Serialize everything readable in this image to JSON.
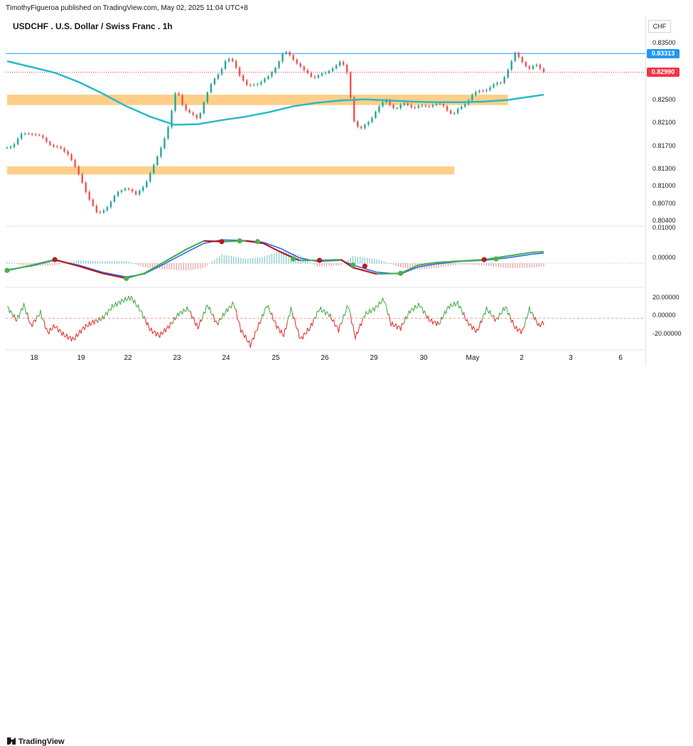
{
  "header": {
    "publisher_line": "TimothyFigueroa published on TradingView.com, May 02, 2025 11:04 UTC+8",
    "symbol_title": "USDCHF . U.S. Dollar / Swiss Franc . 1h"
  },
  "footer": {
    "logo_text": "TradingView"
  },
  "colors": {
    "up": "#26a69a",
    "down": "#ef5350",
    "ma": "#26bbc8",
    "zone": "#ffc774",
    "price_line": "#f23645",
    "high_line": "#2196f3",
    "macd_fast": "#2962ff",
    "macd_green": "#4caf50",
    "macd_red": "#b71c1c",
    "osc_up": "#4caf50",
    "osc_down": "#e53935"
  },
  "chart_data": [
    {
      "type": "candlestick",
      "title": "USDCHF . U.S. Dollar / Swiss Franc . 1h",
      "currency_label": "CHF",
      "y_ticks": [
        "0.83500",
        "0.82500",
        "0.82100",
        "0.81700",
        "0.81300",
        "0.81000",
        "0.80700",
        "0.80400"
      ],
      "x_ticks": [
        "18",
        "19",
        "22",
        "23",
        "24",
        "25",
        "26",
        "29",
        "30",
        "May",
        "2",
        "3",
        "6"
      ],
      "current_price": "0.82990",
      "high_price": "0.83313",
      "close_path": [
        [
          0,
          0.8168
        ],
        [
          6,
          0.8176
        ],
        [
          12,
          0.819
        ],
        [
          20,
          0.8195
        ],
        [
          30,
          0.8184
        ],
        [
          40,
          0.817
        ],
        [
          52,
          0.8158
        ],
        [
          60,
          0.812
        ],
        [
          68,
          0.8085
        ],
        [
          76,
          0.805
        ],
        [
          84,
          0.8068
        ],
        [
          92,
          0.8088
        ],
        [
          100,
          0.8102
        ],
        [
          108,
          0.8085
        ],
        [
          116,
          0.8108
        ],
        [
          124,
          0.814
        ],
        [
          130,
          0.8175
        ],
        [
          136,
          0.821
        ],
        [
          142,
          0.827
        ],
        [
          148,
          0.824
        ],
        [
          154,
          0.8225
        ],
        [
          160,
          0.8218
        ],
        [
          166,
          0.8255
        ],
        [
          172,
          0.828
        ],
        [
          178,
          0.83
        ],
        [
          184,
          0.8322
        ],
        [
          190,
          0.8315
        ],
        [
          196,
          0.8292
        ],
        [
          202,
          0.8272
        ],
        [
          208,
          0.8278
        ],
        [
          214,
          0.8285
        ],
        [
          220,
          0.829
        ],
        [
          226,
          0.8312
        ],
        [
          232,
          0.8335
        ],
        [
          238,
          0.8325
        ],
        [
          244,
          0.8315
        ],
        [
          250,
          0.8298
        ],
        [
          256,
          0.829
        ],
        [
          262,
          0.8296
        ],
        [
          268,
          0.8295
        ],
        [
          274,
          0.831
        ],
        [
          280,
          0.8318
        ],
        [
          286,
          0.8292
        ],
        [
          290,
          0.822
        ],
        [
          296,
          0.8198
        ],
        [
          302,
          0.821
        ],
        [
          310,
          0.8235
        ],
        [
          318,
          0.825
        ],
        [
          326,
          0.8235
        ],
        [
          334,
          0.8245
        ],
        [
          342,
          0.8238
        ],
        [
          350,
          0.824
        ],
        [
          358,
          0.8244
        ],
        [
          366,
          0.824
        ],
        [
          374,
          0.8226
        ],
        [
          382,
          0.824
        ],
        [
          390,
          0.826
        ],
        [
          398,
          0.8266
        ],
        [
          406,
          0.8275
        ],
        [
          414,
          0.828
        ],
        [
          420,
          0.8305
        ],
        [
          426,
          0.833
        ],
        [
          432,
          0.8318
        ],
        [
          438,
          0.8305
        ],
        [
          444,
          0.831
        ],
        [
          450,
          0.8302
        ]
      ],
      "moving_average": [
        [
          0,
          0.8318
        ],
        [
          20,
          0.8308
        ],
        [
          40,
          0.8298
        ],
        [
          60,
          0.8282
        ],
        [
          80,
          0.8262
        ],
        [
          100,
          0.824
        ],
        [
          120,
          0.8222
        ],
        [
          140,
          0.8208
        ],
        [
          160,
          0.8209
        ],
        [
          180,
          0.8216
        ],
        [
          200,
          0.8222
        ],
        [
          220,
          0.823
        ],
        [
          240,
          0.824
        ],
        [
          260,
          0.8246
        ],
        [
          280,
          0.825
        ],
        [
          300,
          0.8252
        ],
        [
          320,
          0.825
        ],
        [
          340,
          0.8248
        ],
        [
          360,
          0.8247
        ],
        [
          380,
          0.8247
        ],
        [
          400,
          0.8248
        ],
        [
          420,
          0.8251
        ],
        [
          440,
          0.8257
        ],
        [
          450,
          0.826
        ]
      ],
      "zones": [
        {
          "from": 0.8242,
          "to": 0.826,
          "x_start": 0,
          "x_end": 420
        },
        {
          "from": 0.8122,
          "to": 0.8136,
          "x_start": 0,
          "x_end": 375
        }
      ]
    },
    {
      "type": "line",
      "indicator": "macd",
      "y_ticks": [
        "0.01000",
        "0.00000"
      ],
      "fast": [
        [
          0,
          -0.0018
        ],
        [
          20,
          -0.0008
        ],
        [
          40,
          0.0008
        ],
        [
          60,
          -0.0005
        ],
        [
          80,
          -0.0025
        ],
        [
          100,
          -0.0038
        ],
        [
          115,
          -0.003
        ],
        [
          130,
          -0.0005
        ],
        [
          150,
          0.003
        ],
        [
          165,
          0.0055
        ],
        [
          180,
          0.0065
        ],
        [
          200,
          0.0063
        ],
        [
          215,
          0.0058
        ],
        [
          230,
          0.004
        ],
        [
          245,
          0.0015
        ],
        [
          260,
          0.0005
        ],
        [
          280,
          0.0008
        ],
        [
          290,
          -0.0005
        ],
        [
          310,
          -0.0025
        ],
        [
          330,
          -0.003
        ],
        [
          345,
          -0.001
        ],
        [
          360,
          -0.0002
        ],
        [
          380,
          0.0005
        ],
        [
          400,
          0.0008
        ],
        [
          420,
          0.0015
        ],
        [
          440,
          0.0025
        ],
        [
          450,
          0.0028
        ]
      ],
      "signal": [
        [
          0,
          -0.002
        ],
        [
          20,
          -0.0006
        ],
        [
          40,
          0.001
        ],
        [
          60,
          -0.0008
        ],
        [
          80,
          -0.0028
        ],
        [
          100,
          -0.0042
        ],
        [
          115,
          -0.0028
        ],
        [
          130,
          0.0
        ],
        [
          150,
          0.0038
        ],
        [
          165,
          0.0062
        ],
        [
          180,
          0.006
        ],
        [
          200,
          0.0062
        ],
        [
          215,
          0.0055
        ],
        [
          230,
          0.003
        ],
        [
          245,
          0.0008
        ],
        [
          260,
          0.0008
        ],
        [
          280,
          0.001
        ],
        [
          290,
          -0.0012
        ],
        [
          310,
          -0.003
        ],
        [
          330,
          -0.0028
        ],
        [
          345,
          -0.0005
        ],
        [
          360,
          0.0002
        ],
        [
          380,
          0.0006
        ],
        [
          400,
          0.001
        ],
        [
          420,
          0.002
        ],
        [
          440,
          0.003
        ],
        [
          450,
          0.0032
        ]
      ],
      "cross_markers": [
        [
          0,
          -0.002,
          "up"
        ],
        [
          40,
          0.001,
          "down"
        ],
        [
          100,
          -0.0042,
          "up"
        ],
        [
          180,
          0.006,
          "down"
        ],
        [
          195,
          0.0062,
          "up"
        ],
        [
          210,
          0.006,
          "up"
        ],
        [
          240,
          0.0012,
          "up"
        ],
        [
          262,
          0.0008,
          "down"
        ],
        [
          290,
          -0.0005,
          "up"
        ],
        [
          300,
          -0.0008,
          "down"
        ],
        [
          330,
          -0.0028,
          "up"
        ],
        [
          400,
          0.001,
          "down"
        ],
        [
          410,
          0.0012,
          "up"
        ]
      ]
    },
    {
      "type": "line",
      "indicator": "oscillator",
      "y_ticks": [
        "20.00000",
        "0.00000",
        "-20.00000"
      ],
      "values": [
        [
          0,
          12
        ],
        [
          8,
          -2
        ],
        [
          14,
          14
        ],
        [
          20,
          -8
        ],
        [
          28,
          6
        ],
        [
          34,
          -15
        ],
        [
          40,
          -8
        ],
        [
          48,
          -18
        ],
        [
          56,
          -22
        ],
        [
          64,
          -10
        ],
        [
          72,
          -4
        ],
        [
          80,
          0
        ],
        [
          88,
          12
        ],
        [
          96,
          18
        ],
        [
          104,
          22
        ],
        [
          112,
          8
        ],
        [
          120,
          -12
        ],
        [
          128,
          -18
        ],
        [
          136,
          -8
        ],
        [
          144,
          5
        ],
        [
          152,
          10
        ],
        [
          160,
          -10
        ],
        [
          168,
          14
        ],
        [
          176,
          -6
        ],
        [
          184,
          8
        ],
        [
          190,
          16
        ],
        [
          196,
          -12
        ],
        [
          204,
          -28
        ],
        [
          210,
          -10
        ],
        [
          218,
          14
        ],
        [
          226,
          -8
        ],
        [
          232,
          -18
        ],
        [
          238,
          10
        ],
        [
          246,
          -22
        ],
        [
          254,
          -10
        ],
        [
          262,
          10
        ],
        [
          270,
          4
        ],
        [
          278,
          -12
        ],
        [
          286,
          14
        ],
        [
          292,
          -20
        ],
        [
          300,
          4
        ],
        [
          308,
          10
        ],
        [
          316,
          20
        ],
        [
          322,
          -6
        ],
        [
          330,
          -10
        ],
        [
          338,
          8
        ],
        [
          346,
          14
        ],
        [
          354,
          -2
        ],
        [
          362,
          -6
        ],
        [
          370,
          12
        ],
        [
          378,
          16
        ],
        [
          386,
          -4
        ],
        [
          394,
          -14
        ],
        [
          402,
          10
        ],
        [
          410,
          -2
        ],
        [
          418,
          12
        ],
        [
          426,
          -10
        ],
        [
          432,
          -14
        ],
        [
          438,
          10
        ],
        [
          446,
          -8
        ],
        [
          450,
          -4
        ]
      ]
    }
  ]
}
